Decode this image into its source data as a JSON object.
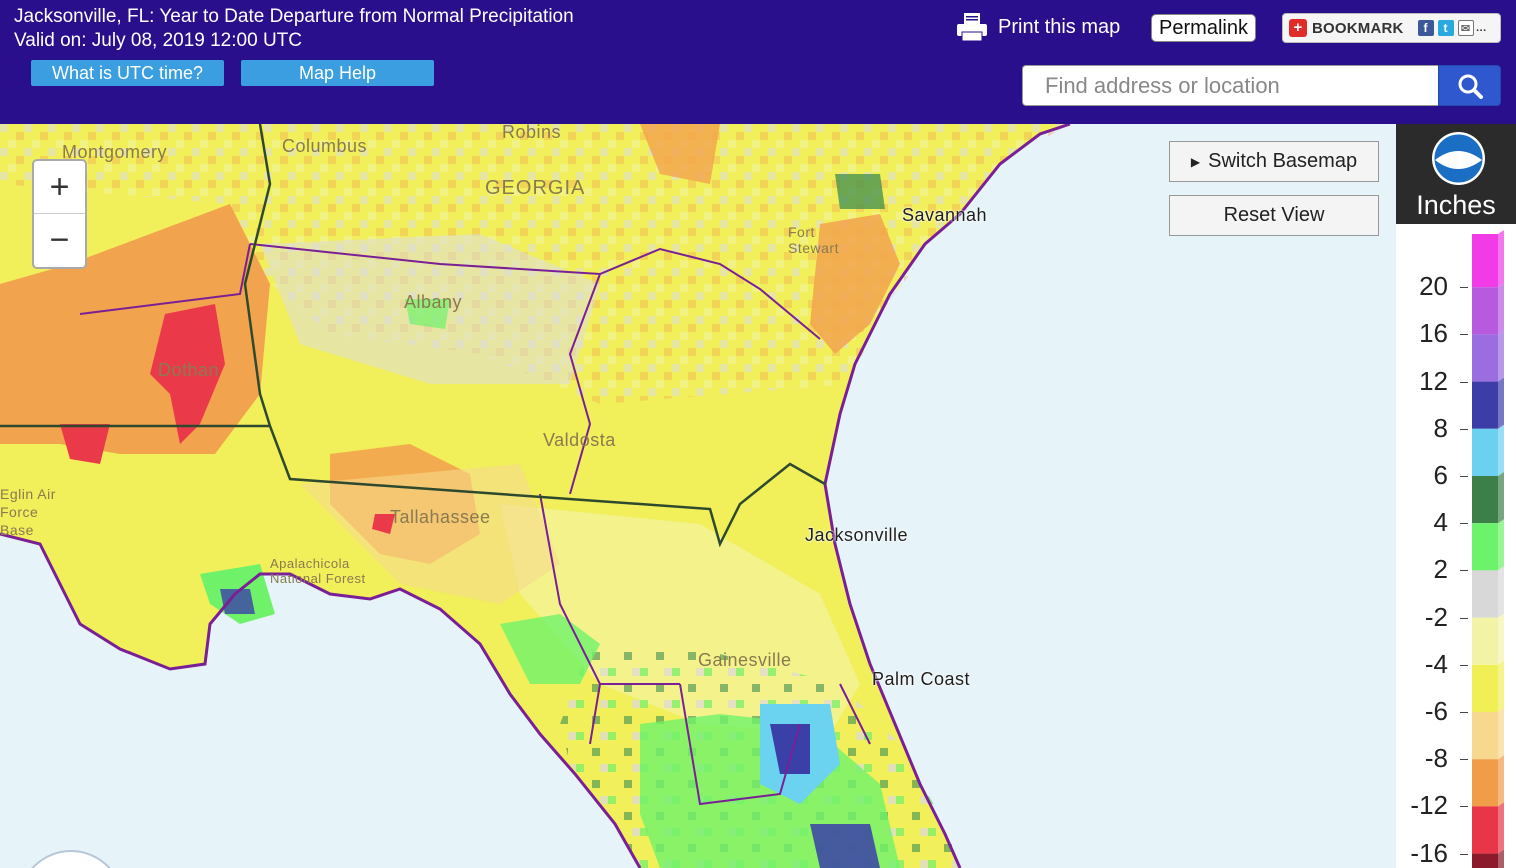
{
  "header": {
    "title_line1": "Jacksonville, FL: Year to Date Departure from Normal Precipitation",
    "title_line2": "Valid on: July 08, 2019 12:00 UTC",
    "utc_button": "What is UTC time?",
    "help_button": "Map Help",
    "print_label": "Print this map",
    "permalink_label": "Permalink",
    "bookmark_label": "BOOKMARK",
    "search_placeholder": "Find address or location"
  },
  "map": {
    "switch_basemap": "Switch Basemap",
    "reset_view": "Reset View",
    "zoom_in": "+",
    "zoom_out": "−",
    "places": [
      "Montgomery",
      "Columbus",
      "Robins",
      "GEORGIA",
      "Savannah",
      "Fort Stewart",
      "Albany",
      "Dothan",
      "Valdosta",
      "Tallahassee",
      "Apalachicola National Forest",
      "Jacksonville",
      "Gainesville",
      "Palm Coast",
      "Eglin Air Force Base"
    ],
    "colors": {
      "water": "#e6f3f9",
      "near_normal": "#dcdcdc",
      "minus2_4": "#f4f4a0",
      "minus4_6": "#f1ef5a",
      "minus6_8": "#f7db8c",
      "minus8_12": "#f2a34d",
      "minus12_16": "#ea3a4a",
      "plus2_4": "#6ff26a",
      "plus4_6": "#3f8d4f",
      "plus6_8": "#6bd3ef",
      "plus8_12": "#3b40a8",
      "boundary_county": "#7a1f95",
      "boundary_state": "#2e4a2e"
    }
  },
  "legend": {
    "unit": "Inches",
    "ticks": [
      "20",
      "16",
      "12",
      "8",
      "6",
      "4",
      "2",
      "-2",
      "-4",
      "-6",
      "-8",
      "-12",
      "-16"
    ],
    "bands": [
      "#f03be6",
      "#b85ae0",
      "#9a6ee0",
      "#3d3da8",
      "#6cd1f1",
      "#3c7f48",
      "#6cf26b",
      "#d8d8d8",
      "#f3f3a8",
      "#f1ef56",
      "#f6d98e",
      "#f09c48",
      "#e83648",
      "#8b1a2a"
    ]
  }
}
